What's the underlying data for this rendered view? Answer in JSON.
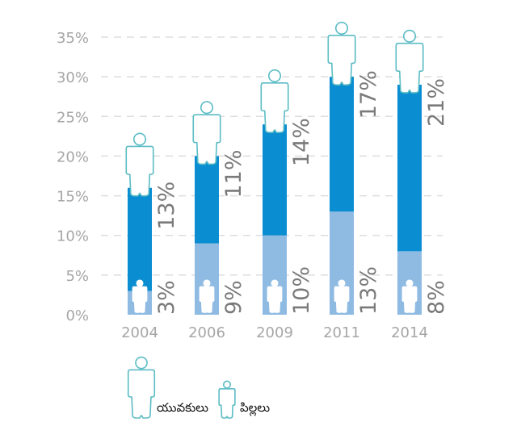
{
  "chart_data": {
    "type": "bar",
    "stacked": true,
    "categories": [
      "2004",
      "2006",
      "2009",
      "2011",
      "2014"
    ],
    "series": [
      {
        "name": "పిల్లలు",
        "values": [
          3,
          9,
          10,
          13,
          8
        ],
        "labels": [
          "3%",
          "9%",
          "10%",
          "13%",
          "8%"
        ],
        "color": "#8fbbe3",
        "icon": "child-icon"
      },
      {
        "name": "యువకులు",
        "values": [
          13,
          11,
          14,
          17,
          21
        ],
        "labels": [
          "13%",
          "11%",
          "14%",
          "17%",
          "21%"
        ],
        "color": "#0a8dd1",
        "icon": "adult-icon"
      }
    ],
    "ylim": [
      0,
      35
    ],
    "yticks": [
      "0%",
      "5%",
      "10%",
      "15%",
      "20%",
      "25%",
      "30%",
      "35%"
    ],
    "grid": true,
    "legend": "bottom-left",
    "title": "",
    "xlabel": "",
    "ylabel": ""
  },
  "colors": {
    "grid": "#dddddd",
    "icon_outline": "#5bbcc4"
  }
}
